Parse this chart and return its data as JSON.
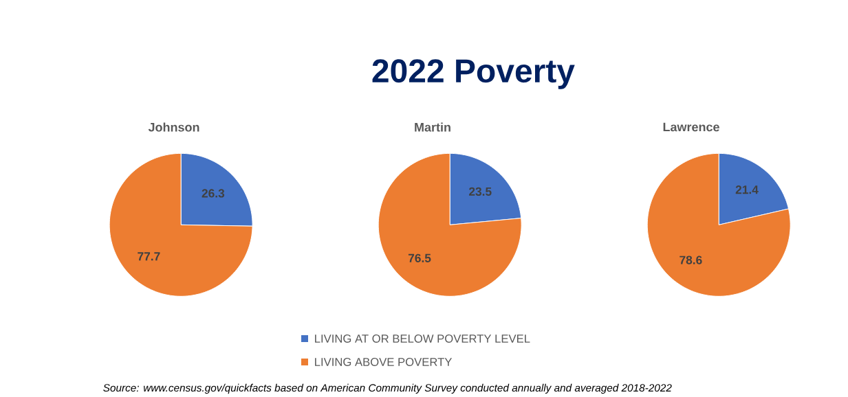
{
  "chart_data": [
    {
      "type": "other",
      "title": "2022 Poverty",
      "annotations": [
        "*Source:* www.census.gov/quickfacts based on American Community Survey conducted annually and averaged 2018-2022"
      ]
    },
    {
      "type": "pie",
      "title": "Johnson",
      "categories": [
        null,
        null
      ],
      "values": [
        26.3,
        77.7
      ],
      "colors": [
        "#4472c4",
        "#ed7d31"
      ],
      "data_labels": true
    },
    {
      "type": "pie",
      "title": "Martin",
      "categories": [
        "LIVING AT OR BELOW POVERTY LEVEL",
        "LIVING ABOVE POVERTY"
      ],
      "values": [
        23.5,
        76.5
      ],
      "colors": [
        "#4472c4",
        "#ed7d31"
      ],
      "data_labels": true,
      "legend": "bottom"
    },
    {
      "type": "pie",
      "title": "Lawrence",
      "categories": [
        null,
        null
      ],
      "values": [
        21.4,
        78.6
      ],
      "colors": [
        "#4472c4",
        "#ed7d31"
      ],
      "data_labels": true
    }
  ]
}
